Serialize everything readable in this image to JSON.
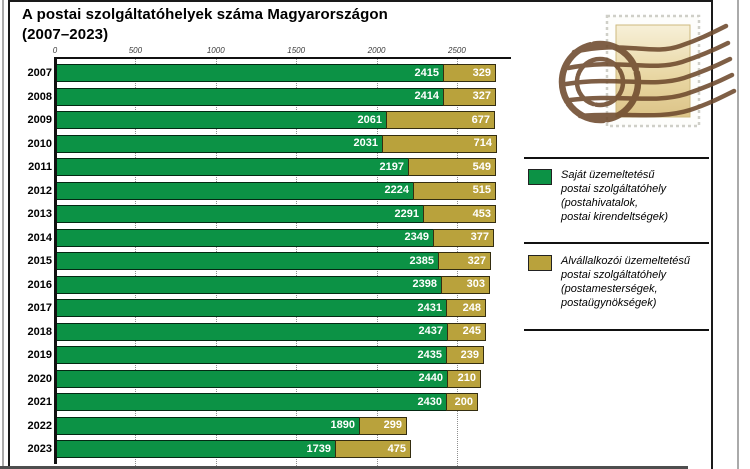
{
  "title": {
    "line1": "A postai szolgáltatóhelyek száma Magyarországon",
    "line2": "(2007–2023)"
  },
  "chart_data": {
    "type": "bar",
    "orientation": "horizontal",
    "stacked": true,
    "title": "A postai szolgáltatóhelyek száma Magyarországon (2007–2023)",
    "categories": [
      "2007",
      "2008",
      "2009",
      "2010",
      "2011",
      "2012",
      "2013",
      "2014",
      "2015",
      "2016",
      "2017",
      "2018",
      "2019",
      "2020",
      "2021",
      "2022",
      "2023"
    ],
    "series": [
      {
        "name": "Saját üzemeltetésű postai szolgáltatóhely (postahivatalok, postai kirendeltségek)",
        "color": "#0c9245",
        "values": [
          2415,
          2414,
          2061,
          2031,
          2197,
          2224,
          2291,
          2349,
          2385,
          2398,
          2431,
          2437,
          2435,
          2440,
          2430,
          1890,
          1739
        ]
      },
      {
        "name": "Alvállalkozói üzemeltetésű postai szolgáltatóhely (postamesterségek, postaügynökségek)",
        "color": "#b9a23c",
        "values": [
          329,
          327,
          677,
          714,
          549,
          515,
          453,
          377,
          327,
          303,
          248,
          245,
          239,
          210,
          200,
          299,
          475
        ]
      }
    ],
    "x_ticks": [
      0,
      500,
      1000,
      1500,
      2000,
      2500
    ],
    "xlim": [
      0,
      2830
    ],
    "grid": "vertical dotted gridlines at ticks",
    "legend_position": "right",
    "value_labels": "white bold inside segment ends"
  },
  "legend": {
    "items": [
      {
        "swatch_color": "#0c9245",
        "lines": [
          "Saját üzemeltetésű",
          "postai szolgáltatóhely",
          "(postahivatalok,",
          "postai kirendeltségek)"
        ]
      },
      {
        "swatch_color": "#b9a23c",
        "lines": [
          "Alvállalkozói üzemeltetésű",
          "postai szolgáltatóhely",
          "(postamesterségek,",
          "postaügynökségek)"
        ]
      }
    ]
  },
  "decor": {
    "stamp": "postage-stamp-with-brown-postmark"
  }
}
